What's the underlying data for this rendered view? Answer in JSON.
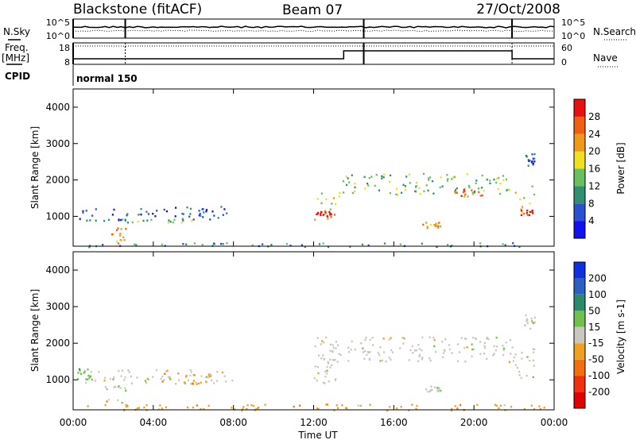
{
  "header": {
    "station": "Blackstone (fitACF)",
    "beam": "Beam 07",
    "date": "27/Oct/2008"
  },
  "noise_panel": {
    "left_label": "N.Sky",
    "right_label": "N.Search",
    "left_ticks": [
      "10^5",
      "10^0"
    ],
    "right_ticks": [
      "10^5",
      "10^0"
    ]
  },
  "freq_panel": {
    "left_label_line1": "Freq.",
    "left_label_line2": "[MHz]",
    "right_label": "Nave",
    "left_ticks": [
      "18",
      "8"
    ],
    "right_ticks": [
      "60",
      "0"
    ]
  },
  "cpid": {
    "label": "CPID",
    "value": "normal 150"
  },
  "x_axis": {
    "label": "Time UT",
    "ticks": [
      "00:00",
      "04:00",
      "08:00",
      "12:00",
      "16:00",
      "20:00",
      "00:00"
    ],
    "range_hours": [
      0,
      24
    ]
  },
  "power_panel": {
    "ylabel": "Slant Range [km]",
    "yticks": [
      "1000",
      "2000",
      "3000",
      "4000"
    ],
    "colorbar_label": "Power [dB]",
    "colorbar_ticks": [
      "4",
      "8",
      "12",
      "16",
      "20",
      "24",
      "28"
    ],
    "colors": [
      "#1010f0",
      "#2a52d0",
      "#2f8f6f",
      "#6ac060",
      "#f0e020",
      "#f09818",
      "#f06010",
      "#e81010"
    ]
  },
  "velocity_panel": {
    "ylabel": "Slant Range [km]",
    "yticks": [
      "1000",
      "2000",
      "3000",
      "4000"
    ],
    "colorbar_label": "Velocity [m s-1]",
    "colorbar_ticks": [
      "200",
      "100",
      "50",
      "15",
      "-15",
      "-50",
      "-100",
      "-200"
    ],
    "colors": [
      "#1030e0",
      "#2a60c0",
      "#2a8a6a",
      "#70c050",
      "#c8c8c0",
      "#f0a020",
      "#f07010",
      "#f03010",
      "#e00000"
    ]
  },
  "chart_data": {
    "type": "heatmap",
    "x": {
      "label": "Time UT",
      "range_hours": [
        0,
        24
      ]
    },
    "y": {
      "label": "Slant Range [km]",
      "range_km": [
        180,
        4500
      ]
    },
    "power_regions": [
      {
        "t0": 0.2,
        "t1": 8.0,
        "r0": 900,
        "r1": 1300,
        "level": 1
      },
      {
        "t0": 1.0,
        "t1": 6.0,
        "r0": 850,
        "r1": 950,
        "level": 3
      },
      {
        "t0": 1.8,
        "t1": 2.6,
        "r0": 200,
        "r1": 700,
        "level": 5
      },
      {
        "t0": 0.5,
        "t1": 24.0,
        "r0": 180,
        "r1": 300,
        "level": 2
      },
      {
        "t0": 12.0,
        "t1": 13.3,
        "r0": 900,
        "r1": 1700,
        "level": 4
      },
      {
        "t0": 12.1,
        "t1": 13.2,
        "r0": 1000,
        "r1": 1150,
        "level": 7
      },
      {
        "t0": 13.3,
        "t1": 21.9,
        "r0": 1600,
        "r1": 2200,
        "level": 3
      },
      {
        "t0": 17.4,
        "t1": 18.3,
        "r0": 700,
        "r1": 850,
        "level": 5
      },
      {
        "t0": 19.0,
        "t1": 20.5,
        "r0": 1550,
        "r1": 1750,
        "level": 6
      },
      {
        "t0": 22.0,
        "t1": 23.0,
        "r0": 1000,
        "r1": 1900,
        "level": 4
      },
      {
        "t0": 22.1,
        "t1": 22.9,
        "r0": 1050,
        "r1": 1200,
        "level": 7
      },
      {
        "t0": 22.5,
        "t1": 23.0,
        "r0": 2400,
        "r1": 2800,
        "level": 1
      }
    ],
    "velocity_regions": [
      {
        "t0": 0.2,
        "t1": 8.0,
        "r0": 900,
        "r1": 1300,
        "level": 4
      },
      {
        "t0": 0.2,
        "t1": 1.0,
        "r0": 1000,
        "r1": 1350,
        "level": 3
      },
      {
        "t0": 3.5,
        "t1": 6.8,
        "r0": 900,
        "r1": 1200,
        "level": 5
      },
      {
        "t0": 1.5,
        "t1": 2.6,
        "r0": 300,
        "r1": 850,
        "level": 4
      },
      {
        "t0": 0.5,
        "t1": 24.0,
        "r0": 180,
        "r1": 350,
        "level": 5
      },
      {
        "t0": 12.0,
        "t1": 22.0,
        "r0": 1500,
        "r1": 2200,
        "level": 4
      },
      {
        "t0": 12.0,
        "t1": 13.3,
        "r0": 900,
        "r1": 1700,
        "level": 4
      },
      {
        "t0": 17.4,
        "t1": 18.3,
        "r0": 700,
        "r1": 850,
        "level": 4
      },
      {
        "t0": 22.0,
        "t1": 23.0,
        "r0": 1000,
        "r1": 1900,
        "level": 4
      },
      {
        "t0": 22.5,
        "t1": 23.0,
        "r0": 2400,
        "r1": 2800,
        "level": 4
      }
    ]
  }
}
